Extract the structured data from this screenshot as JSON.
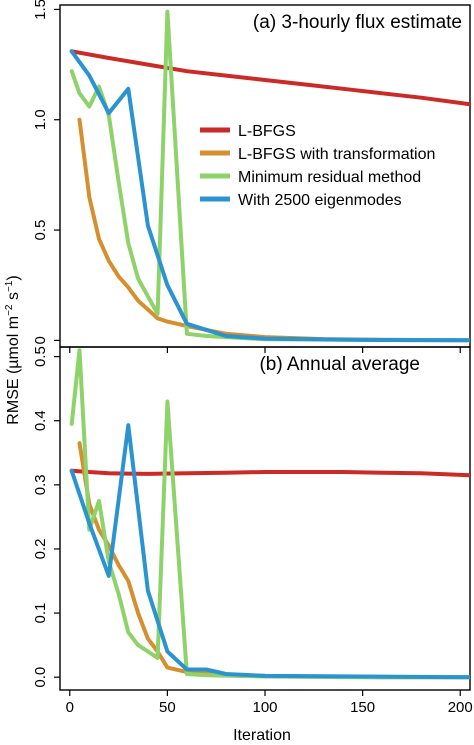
{
  "ylabel_main": "RMSE (µmol m",
  "ylabel_sup1": "−2",
  "ylabel_mid": " s",
  "ylabel_sup2": "−1",
  "ylabel_end": ")",
  "xlabel": "Iteration",
  "chart_data": [
    {
      "type": "line",
      "title": "(a) 3-hourly flux estimate",
      "xlim": [
        -5,
        205
      ],
      "ylim": [
        -0.03,
        1.52
      ],
      "xticks": [
        0,
        50,
        100,
        150,
        200
      ],
      "yticks": [
        0,
        0.5,
        1.0,
        1.5
      ],
      "ytick_labels": [
        "0",
        "0.5",
        "1.0",
        "1.5"
      ],
      "grid": false,
      "legend_position": "center-right",
      "series": [
        {
          "name": "L-BFGS",
          "color": "#cc2a27",
          "x": [
            1,
            20,
            40,
            60,
            80,
            100,
            120,
            140,
            160,
            180,
            205
          ],
          "y": [
            1.31,
            1.28,
            1.25,
            1.22,
            1.2,
            1.18,
            1.16,
            1.14,
            1.12,
            1.1,
            1.07
          ]
        },
        {
          "name": "L-BFGS with transformation",
          "color": "#d68f2e",
          "x": [
            5,
            10,
            15,
            20,
            25,
            30,
            35,
            40,
            45,
            50,
            60,
            80,
            100,
            130,
            160,
            205
          ],
          "y": [
            1.0,
            0.65,
            0.46,
            0.36,
            0.29,
            0.24,
            0.18,
            0.14,
            0.1,
            0.085,
            0.065,
            0.03,
            0.015,
            0.006,
            0.003,
            0.001
          ]
        },
        {
          "name": "Minimum residual method",
          "color": "#8dd36a",
          "x": [
            1,
            5,
            10,
            15,
            20,
            25,
            30,
            35,
            40,
            45,
            50,
            60,
            70,
            100,
            150,
            205
          ],
          "y": [
            1.22,
            1.12,
            1.06,
            1.15,
            1.02,
            0.72,
            0.44,
            0.28,
            0.2,
            0.12,
            1.49,
            0.03,
            0.02,
            0.005,
            0.002,
            0.001
          ]
        },
        {
          "name": "With 2500 eigenmodes",
          "color": "#2b93cf",
          "x": [
            1,
            10,
            20,
            30,
            40,
            50,
            60,
            80,
            100,
            150,
            205
          ],
          "y": [
            1.31,
            1.2,
            1.03,
            1.14,
            0.52,
            0.25,
            0.075,
            0.02,
            0.008,
            0.002,
            0.001
          ]
        }
      ]
    },
    {
      "type": "line",
      "title": "(b) Annual average",
      "xlim": [
        -5,
        205
      ],
      "ylim": [
        -0.02,
        0.515
      ],
      "xticks": [
        0,
        50,
        100,
        150,
        200
      ],
      "xtick_labels": [
        "0",
        "50",
        "100",
        "150",
        "200"
      ],
      "yticks": [
        0,
        0.1,
        0.2,
        0.3,
        0.4,
        0.5
      ],
      "ytick_labels": [
        "0.0",
        "0.1",
        "0.2",
        "0.3",
        "0.4",
        "0.5"
      ],
      "grid": false,
      "series": [
        {
          "name": "L-BFGS",
          "color": "#cc2a27",
          "x": [
            1,
            10,
            20,
            40,
            60,
            80,
            100,
            120,
            140,
            160,
            180,
            205
          ],
          "y": [
            0.322,
            0.32,
            0.318,
            0.317,
            0.318,
            0.319,
            0.32,
            0.32,
            0.32,
            0.319,
            0.318,
            0.315
          ]
        },
        {
          "name": "L-BFGS with transformation",
          "color": "#d68f2e",
          "x": [
            5,
            10,
            15,
            20,
            25,
            30,
            35,
            40,
            45,
            50,
            60,
            80,
            100,
            130,
            160,
            205
          ],
          "y": [
            0.365,
            0.27,
            0.23,
            0.205,
            0.175,
            0.15,
            0.1,
            0.06,
            0.04,
            0.015,
            0.008,
            0.004,
            0.002,
            0.001,
            0.0,
            0.0
          ]
        },
        {
          "name": "Minimum residual method",
          "color": "#8dd36a",
          "x": [
            1,
            5,
            10,
            15,
            20,
            25,
            30,
            35,
            40,
            45,
            50,
            60,
            70,
            100,
            150,
            205
          ],
          "y": [
            0.395,
            0.51,
            0.23,
            0.275,
            0.18,
            0.13,
            0.07,
            0.05,
            0.04,
            0.03,
            0.43,
            0.005,
            0.003,
            0.001,
            0.0,
            0.0
          ]
        },
        {
          "name": "With 2500 eigenmodes",
          "color": "#2b93cf",
          "x": [
            1,
            10,
            20,
            30,
            40,
            50,
            60,
            70,
            80,
            100,
            150,
            205
          ],
          "y": [
            0.322,
            0.24,
            0.158,
            0.393,
            0.135,
            0.04,
            0.012,
            0.012,
            0.005,
            0.002,
            0.001,
            0.0
          ]
        }
      ]
    }
  ]
}
